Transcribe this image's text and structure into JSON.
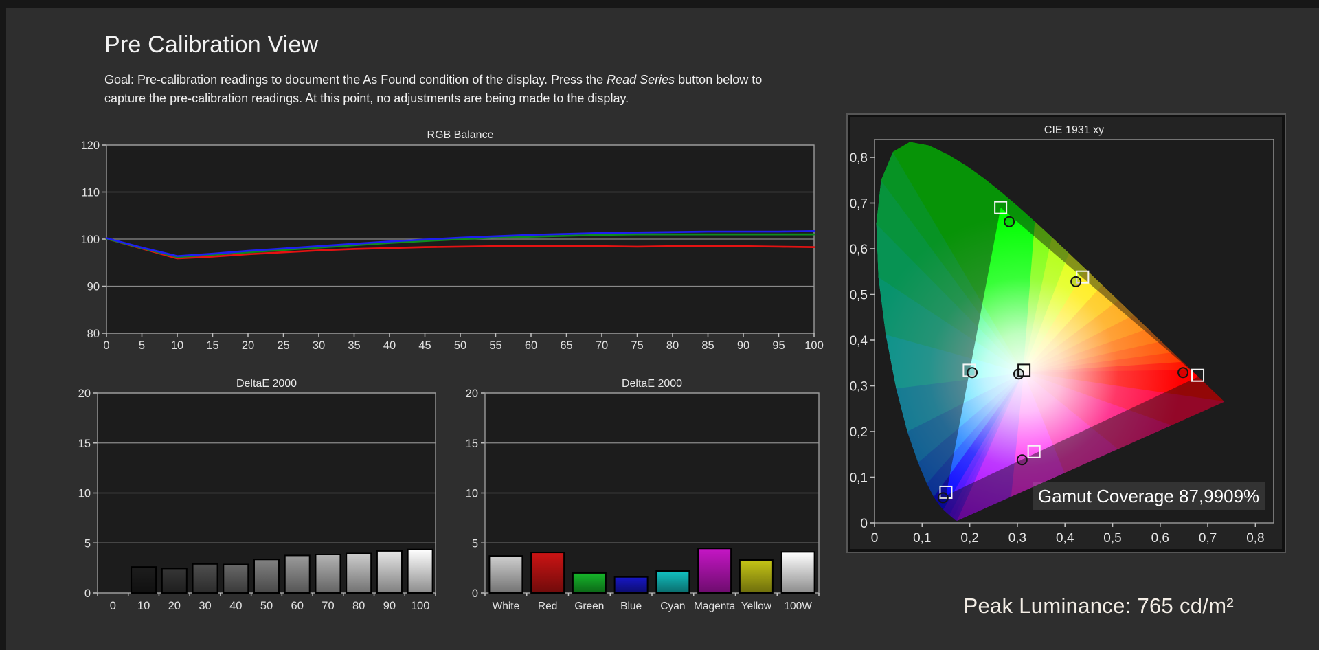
{
  "page": {
    "title": "Pre Calibration View",
    "goal_line1_prefix": "Goal: Pre-calibration readings to document the As Found condition of the display. Press the ",
    "goal_line1_italic": "Read Series",
    "goal_line1_suffix": " button below to",
    "goal_line2": "capture the pre-calibration readings. At this point, no adjustments are being made to the display.",
    "peak_luminance": "Peak Luminance: 765 cd/m²"
  },
  "colors": {
    "background": "#2e2e2e",
    "plot_background": "#1c1c1c",
    "grid": "#8a8a8a",
    "tick_text": "#e2e2e2",
    "red_line": "#e51212",
    "green_line": "#0f8c1f",
    "blue_line": "#1f1ff0"
  },
  "chart_data": [
    {
      "type": "line",
      "title": "RGB Balance",
      "x": [
        0,
        5,
        10,
        15,
        20,
        25,
        30,
        35,
        40,
        45,
        50,
        55,
        60,
        65,
        70,
        75,
        80,
        85,
        90,
        95,
        100
      ],
      "xtick_labels": [
        "0",
        "5",
        "10",
        "15",
        "20",
        "25",
        "30",
        "35",
        "40",
        "45",
        "50",
        "55",
        "60",
        "65",
        "70",
        "75",
        "80",
        "85",
        "90",
        "95",
        "100"
      ],
      "ylim": [
        80,
        120
      ],
      "yticks": [
        80,
        90,
        100,
        110,
        120
      ],
      "ytick_labels": [
        "80",
        "90",
        "100",
        "110",
        "120"
      ],
      "series": [
        {
          "name": "Red",
          "color": "#e51212",
          "values": [
            100.1,
            98.0,
            95.9,
            96.3,
            96.8,
            97.2,
            97.6,
            97.9,
            98.1,
            98.3,
            98.4,
            98.5,
            98.6,
            98.5,
            98.5,
            98.4,
            98.5,
            98.6,
            98.5,
            98.4,
            98.3
          ]
        },
        {
          "name": "Green",
          "color": "#0f8c1f",
          "values": [
            100.1,
            98.1,
            96.2,
            96.7,
            97.2,
            97.7,
            98.2,
            98.7,
            99.2,
            99.6,
            100.0,
            100.3,
            100.5,
            100.7,
            100.9,
            101.0,
            101.0,
            101.0,
            101.0,
            101.0,
            101.0
          ]
        },
        {
          "name": "Blue",
          "color": "#1f1ff0",
          "values": [
            100.2,
            98.2,
            96.4,
            96.9,
            97.5,
            98.0,
            98.5,
            99.0,
            99.5,
            99.9,
            100.3,
            100.6,
            100.9,
            101.1,
            101.3,
            101.4,
            101.5,
            101.6,
            101.6,
            101.6,
            101.7
          ]
        }
      ]
    },
    {
      "type": "bar",
      "title": "DeltaE 2000",
      "categories": [
        "0",
        "10",
        "20",
        "30",
        "40",
        "50",
        "60",
        "70",
        "80",
        "90",
        "100"
      ],
      "values": [
        0,
        2.6,
        2.45,
        2.9,
        2.85,
        3.35,
        3.75,
        3.85,
        3.95,
        4.2,
        4.35
      ],
      "bar_colors": [
        "#000000",
        "#1d1d1d",
        "#363636",
        "#4f4f4f",
        "#686868",
        "#828282",
        "#9b9b9b",
        "#b4b4b4",
        "#cdcdcd",
        "#e6e6e6",
        "#ffffff"
      ],
      "ylim": [
        0,
        20
      ],
      "yticks": [
        0,
        5,
        10,
        15,
        20
      ],
      "ytick_labels": [
        "0",
        "5",
        "10",
        "15",
        "20"
      ]
    },
    {
      "type": "bar",
      "title": "DeltaE 2000",
      "categories": [
        "White",
        "Red",
        "Green",
        "Blue",
        "Cyan",
        "Magenta",
        "Yellow",
        "100W"
      ],
      "values": [
        3.7,
        4.05,
        2.0,
        1.6,
        2.2,
        4.45,
        3.3,
        4.1
      ],
      "bar_colors": [
        "#cfcfcf",
        "#cc1414",
        "#16b82a",
        "#1717c6",
        "#12c2c2",
        "#c616c6",
        "#c6c616",
        "#ffffff"
      ],
      "ylim": [
        0,
        20
      ],
      "yticks": [
        0,
        5,
        10,
        15,
        20
      ],
      "ytick_labels": [
        "0",
        "5",
        "10",
        "15",
        "20"
      ]
    },
    {
      "type": "scatter",
      "title": "CIE 1931 xy",
      "xlim": [
        0,
        0.8
      ],
      "ylim": [
        0,
        0.84
      ],
      "xtick_labels": [
        "0",
        "0,1",
        "0,2",
        "0,3",
        "0,4",
        "0,5",
        "0,6",
        "0,7",
        "0,8"
      ],
      "ytick_labels": [
        "0",
        "0,1",
        "0,2",
        "0,3",
        "0,4",
        "0,5",
        "0,6",
        "0,7",
        "0,8"
      ],
      "gamut_coverage_label": "Gamut Coverage 87,9909%",
      "white_point": {
        "x": 0.3127,
        "y": 0.329
      },
      "target_triangle": {
        "red": [
          0.68,
          0.32
        ],
        "green": [
          0.265,
          0.69
        ],
        "blue": [
          0.15,
          0.06
        ]
      },
      "targets": [
        {
          "name": "Green",
          "x": 0.265,
          "y": 0.69
        },
        {
          "name": "Yellow",
          "x": 0.437,
          "y": 0.538
        },
        {
          "name": "Cyan",
          "x": 0.199,
          "y": 0.334
        },
        {
          "name": "White",
          "x": 0.314,
          "y": 0.334
        },
        {
          "name": "Red",
          "x": 0.679,
          "y": 0.323
        },
        {
          "name": "Magenta",
          "x": 0.335,
          "y": 0.156
        },
        {
          "name": "Blue",
          "x": 0.15,
          "y": 0.067
        }
      ],
      "measurements": [
        {
          "name": "Green",
          "x": 0.283,
          "y": 0.659
        },
        {
          "name": "Yellow",
          "x": 0.423,
          "y": 0.528
        },
        {
          "name": "Cyan",
          "x": 0.205,
          "y": 0.329
        },
        {
          "name": "White",
          "x": 0.303,
          "y": 0.326
        },
        {
          "name": "Red",
          "x": 0.648,
          "y": 0.329
        },
        {
          "name": "Magenta",
          "x": 0.31,
          "y": 0.138
        },
        {
          "name": "Blue",
          "x": 0.144,
          "y": 0.055
        }
      ]
    }
  ]
}
